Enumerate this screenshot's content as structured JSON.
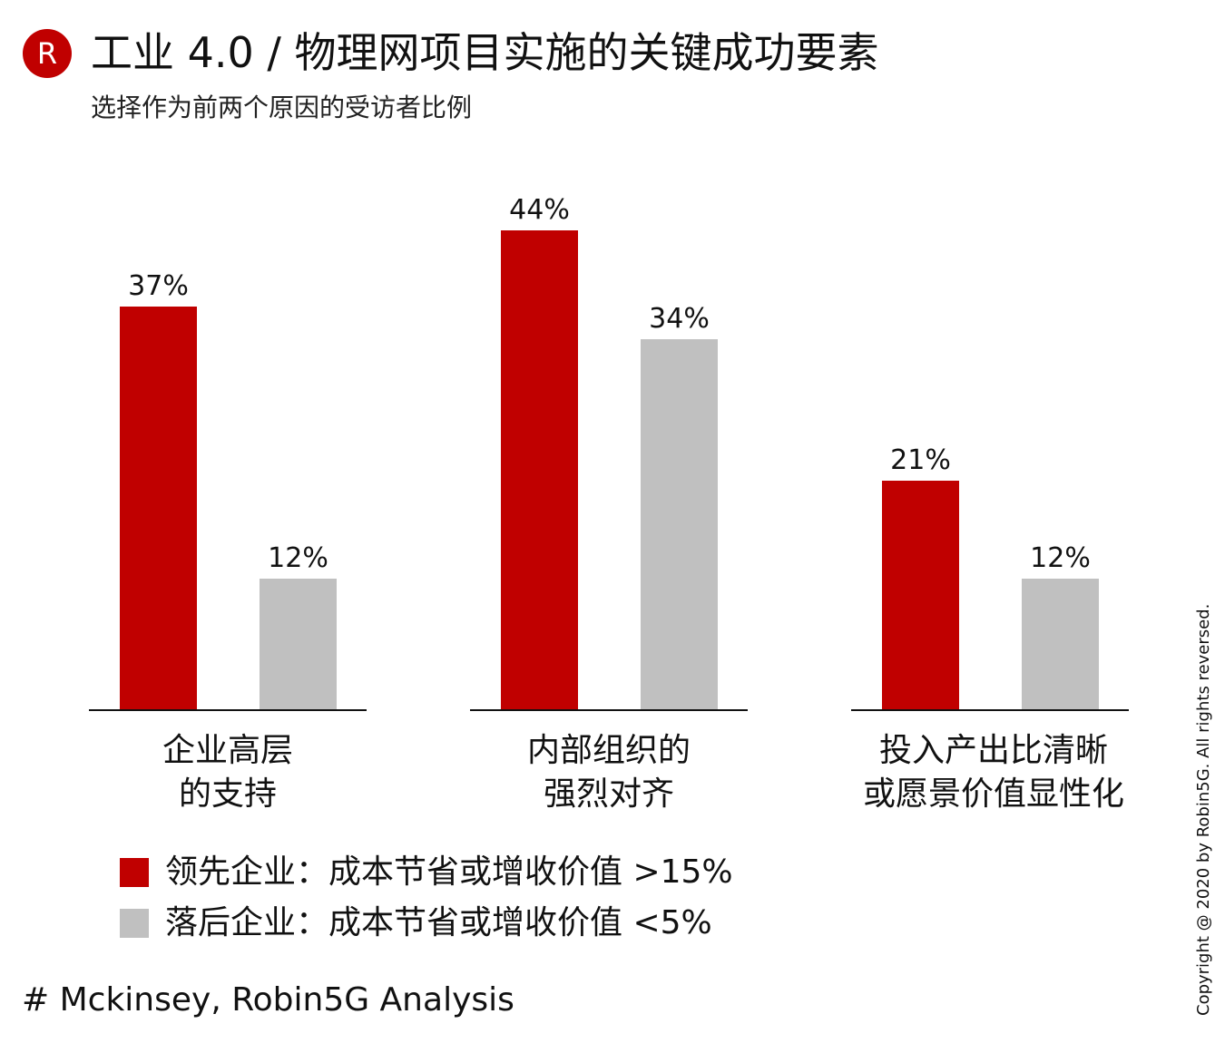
{
  "logo_letter": "R",
  "title": "工业 4.0 / 物理网项目实施的关键成功要素",
  "subtitle": "选择作为前两个原因的受访者比例",
  "chart_data": {
    "type": "bar",
    "categories": [
      [
        "企业高层",
        "的支持"
      ],
      [
        "内部组织的",
        "强烈对齐"
      ],
      [
        "投入产出比清晰",
        "或愿景价值显性化"
      ]
    ],
    "series": [
      {
        "name": "领先企业：成本节省或增收价值 >15%",
        "color": "#c00000",
        "values": [
          37,
          44,
          21
        ],
        "labels": [
          "37%",
          "44%",
          "21%"
        ]
      },
      {
        "name": "落后企业：成本节省或增收价值 <5%",
        "color": "#c0c0c0",
        "values": [
          12,
          34,
          12
        ],
        "labels": [
          "12%",
          "34%",
          "12%"
        ]
      }
    ],
    "ylim": [
      0,
      50
    ],
    "grid": false,
    "legend_position": "bottom-left"
  },
  "legend": [
    {
      "label": "领先企业：成本节省或增收价值 >15%",
      "color": "#c00000"
    },
    {
      "label": "落后企业：成本节省或增收价值 <5%",
      "color": "#c0c0c0"
    }
  ],
  "source": "# Mckinsey, Robin5G Analysis",
  "copyright": "Copyright @ 2020 by Robin5G. All rights reversed."
}
